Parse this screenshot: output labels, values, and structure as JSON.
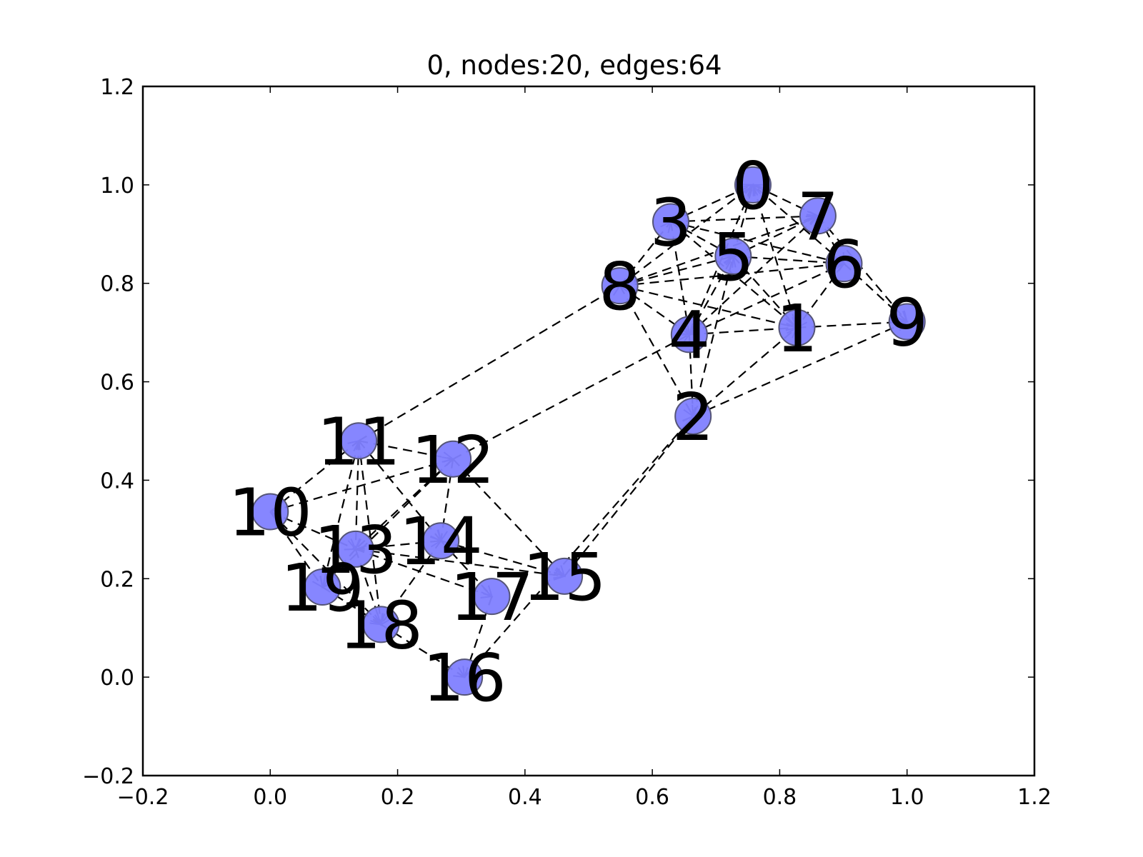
{
  "chart_data": {
    "type": "scatter",
    "subtype": "directed-graph",
    "title": "0, nodes:20, edges:64",
    "xlabel": "",
    "ylabel": "",
    "xlim": [
      -0.2,
      1.2
    ],
    "ylim": [
      -0.2,
      1.2
    ],
    "xticks": [
      "−0.2",
      "0.0",
      "0.2",
      "0.4",
      "0.6",
      "0.8",
      "1.0",
      "1.2"
    ],
    "yticks": [
      "−0.2",
      "0.0",
      "0.2",
      "0.4",
      "0.6",
      "0.8",
      "1.0",
      "1.2"
    ],
    "xtick_values": [
      -0.2,
      0.0,
      0.2,
      0.4,
      0.6,
      0.8,
      1.0,
      1.2
    ],
    "ytick_values": [
      -0.2,
      0.0,
      0.2,
      0.4,
      0.6,
      0.8,
      1.0,
      1.2
    ],
    "grid": false,
    "node_color": "#7f7fff",
    "edge_style": "dashed",
    "nodes": [
      {
        "id": "0",
        "x": 0.758,
        "y": 1.0
      },
      {
        "id": "1",
        "x": 0.827,
        "y": 0.71
      },
      {
        "id": "2",
        "x": 0.664,
        "y": 0.53
      },
      {
        "id": "3",
        "x": 0.629,
        "y": 0.925
      },
      {
        "id": "4",
        "x": 0.658,
        "y": 0.696
      },
      {
        "id": "5",
        "x": 0.727,
        "y": 0.855
      },
      {
        "id": "6",
        "x": 0.901,
        "y": 0.84
      },
      {
        "id": "7",
        "x": 0.86,
        "y": 0.937
      },
      {
        "id": "8",
        "x": 0.549,
        "y": 0.795
      },
      {
        "id": "9",
        "x": 1.0,
        "y": 0.722
      },
      {
        "id": "10",
        "x": 0.0,
        "y": 0.336
      },
      {
        "id": "11",
        "x": 0.139,
        "y": 0.48
      },
      {
        "id": "12",
        "x": 0.287,
        "y": 0.443
      },
      {
        "id": "13",
        "x": 0.134,
        "y": 0.26
      },
      {
        "id": "14",
        "x": 0.268,
        "y": 0.277
      },
      {
        "id": "15",
        "x": 0.462,
        "y": 0.205
      },
      {
        "id": "16",
        "x": 0.305,
        "y": 0.0
      },
      {
        "id": "17",
        "x": 0.348,
        "y": 0.164
      },
      {
        "id": "18",
        "x": 0.174,
        "y": 0.107
      },
      {
        "id": "19",
        "x": 0.082,
        "y": 0.183
      }
    ],
    "edges": [
      [
        "3",
        "0"
      ],
      [
        "5",
        "0"
      ],
      [
        "8",
        "0"
      ],
      [
        "7",
        "0"
      ],
      [
        "6",
        "0"
      ],
      [
        "0",
        "1"
      ],
      [
        "4",
        "0"
      ],
      [
        "3",
        "5"
      ],
      [
        "3",
        "6"
      ],
      [
        "3",
        "1"
      ],
      [
        "3",
        "4"
      ],
      [
        "8",
        "3"
      ],
      [
        "3",
        "7"
      ],
      [
        "8",
        "5"
      ],
      [
        "8",
        "7"
      ],
      [
        "8",
        "6"
      ],
      [
        "8",
        "1"
      ],
      [
        "8",
        "2"
      ],
      [
        "8",
        "4"
      ],
      [
        "5",
        "6"
      ],
      [
        "5",
        "7"
      ],
      [
        "5",
        "1"
      ],
      [
        "4",
        "5"
      ],
      [
        "2",
        "5"
      ],
      [
        "7",
        "6"
      ],
      [
        "7",
        "9"
      ],
      [
        "4",
        "7"
      ],
      [
        "6",
        "9"
      ],
      [
        "6",
        "1"
      ],
      [
        "4",
        "6"
      ],
      [
        "1",
        "9"
      ],
      [
        "2",
        "1"
      ],
      [
        "4",
        "1"
      ],
      [
        "2",
        "9"
      ],
      [
        "4",
        "2"
      ],
      [
        "12",
        "4"
      ],
      [
        "11",
        "8"
      ],
      [
        "15",
        "2"
      ],
      [
        "16",
        "2"
      ],
      [
        "10",
        "11"
      ],
      [
        "10",
        "12"
      ],
      [
        "10",
        "13"
      ],
      [
        "10",
        "19"
      ],
      [
        "10",
        "18"
      ],
      [
        "11",
        "12"
      ],
      [
        "11",
        "13"
      ],
      [
        "11",
        "14"
      ],
      [
        "11",
        "19"
      ],
      [
        "11",
        "18"
      ],
      [
        "12",
        "13"
      ],
      [
        "12",
        "14"
      ],
      [
        "12",
        "15"
      ],
      [
        "12",
        "19"
      ],
      [
        "13",
        "14"
      ],
      [
        "13",
        "15"
      ],
      [
        "13",
        "17"
      ],
      [
        "13",
        "18"
      ],
      [
        "13",
        "19"
      ],
      [
        "14",
        "15"
      ],
      [
        "14",
        "17"
      ],
      [
        "14",
        "18"
      ],
      [
        "19",
        "18"
      ],
      [
        "18",
        "16"
      ],
      [
        "17",
        "16"
      ]
    ]
  }
}
